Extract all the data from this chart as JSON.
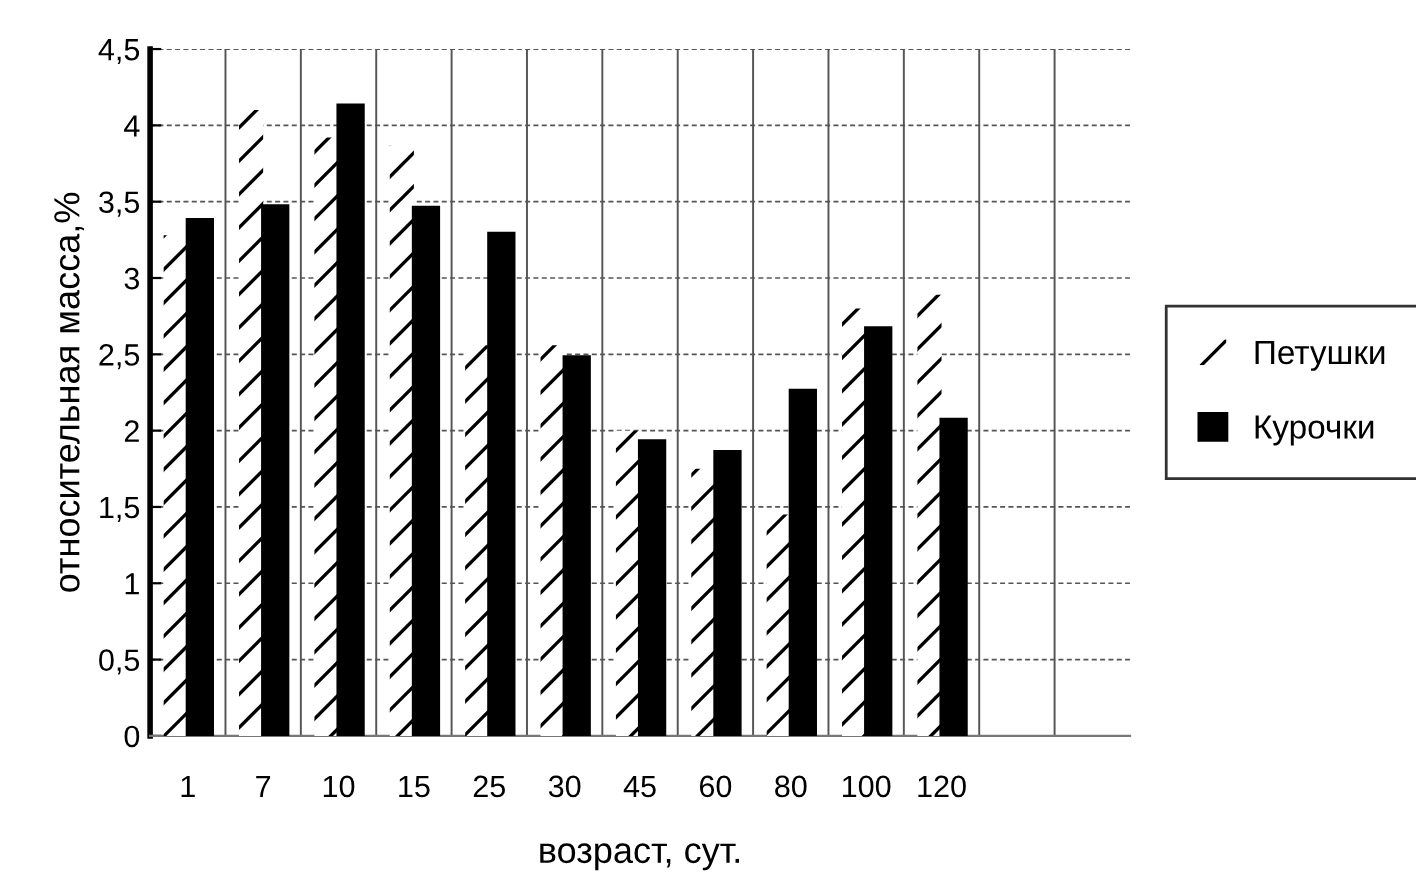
{
  "chart_data": {
    "type": "bar",
    "xlabel": "возраст, сут.",
    "ylabel": "относительная масса,%",
    "categories": [
      "1",
      "7",
      "10",
      "15",
      "25",
      "30",
      "45",
      "60",
      "80",
      "100",
      "120",
      null,
      null
    ],
    "series": [
      {
        "name": "Петушки",
        "color": "#ffffff",
        "values": [
          3.28,
          4.1,
          3.92,
          3.87,
          2.56,
          2.56,
          2.0,
          1.75,
          1.45,
          2.8,
          2.89,
          null,
          null
        ]
      },
      {
        "name": "Курочки",
        "color": "#000000",
        "values": [
          3.38,
          3.47,
          4.13,
          3.46,
          3.29,
          2.48,
          1.93,
          1.86,
          2.26,
          2.67,
          2.07,
          null,
          null
        ]
      }
    ],
    "ylim": [
      0,
      4.5
    ],
    "yticks": [
      0,
      {
        "value": 0.5,
        "label": "0,5"
      },
      1,
      {
        "value": 1.5,
        "label": "1,5"
      },
      2,
      {
        "value": 2.5,
        "label": "2,5"
      },
      3,
      {
        "value": 3.5,
        "label": "3,5"
      },
      4,
      {
        "value": 4.5,
        "label": "4,5"
      }
    ],
    "grid": true,
    "legend": "right"
  }
}
